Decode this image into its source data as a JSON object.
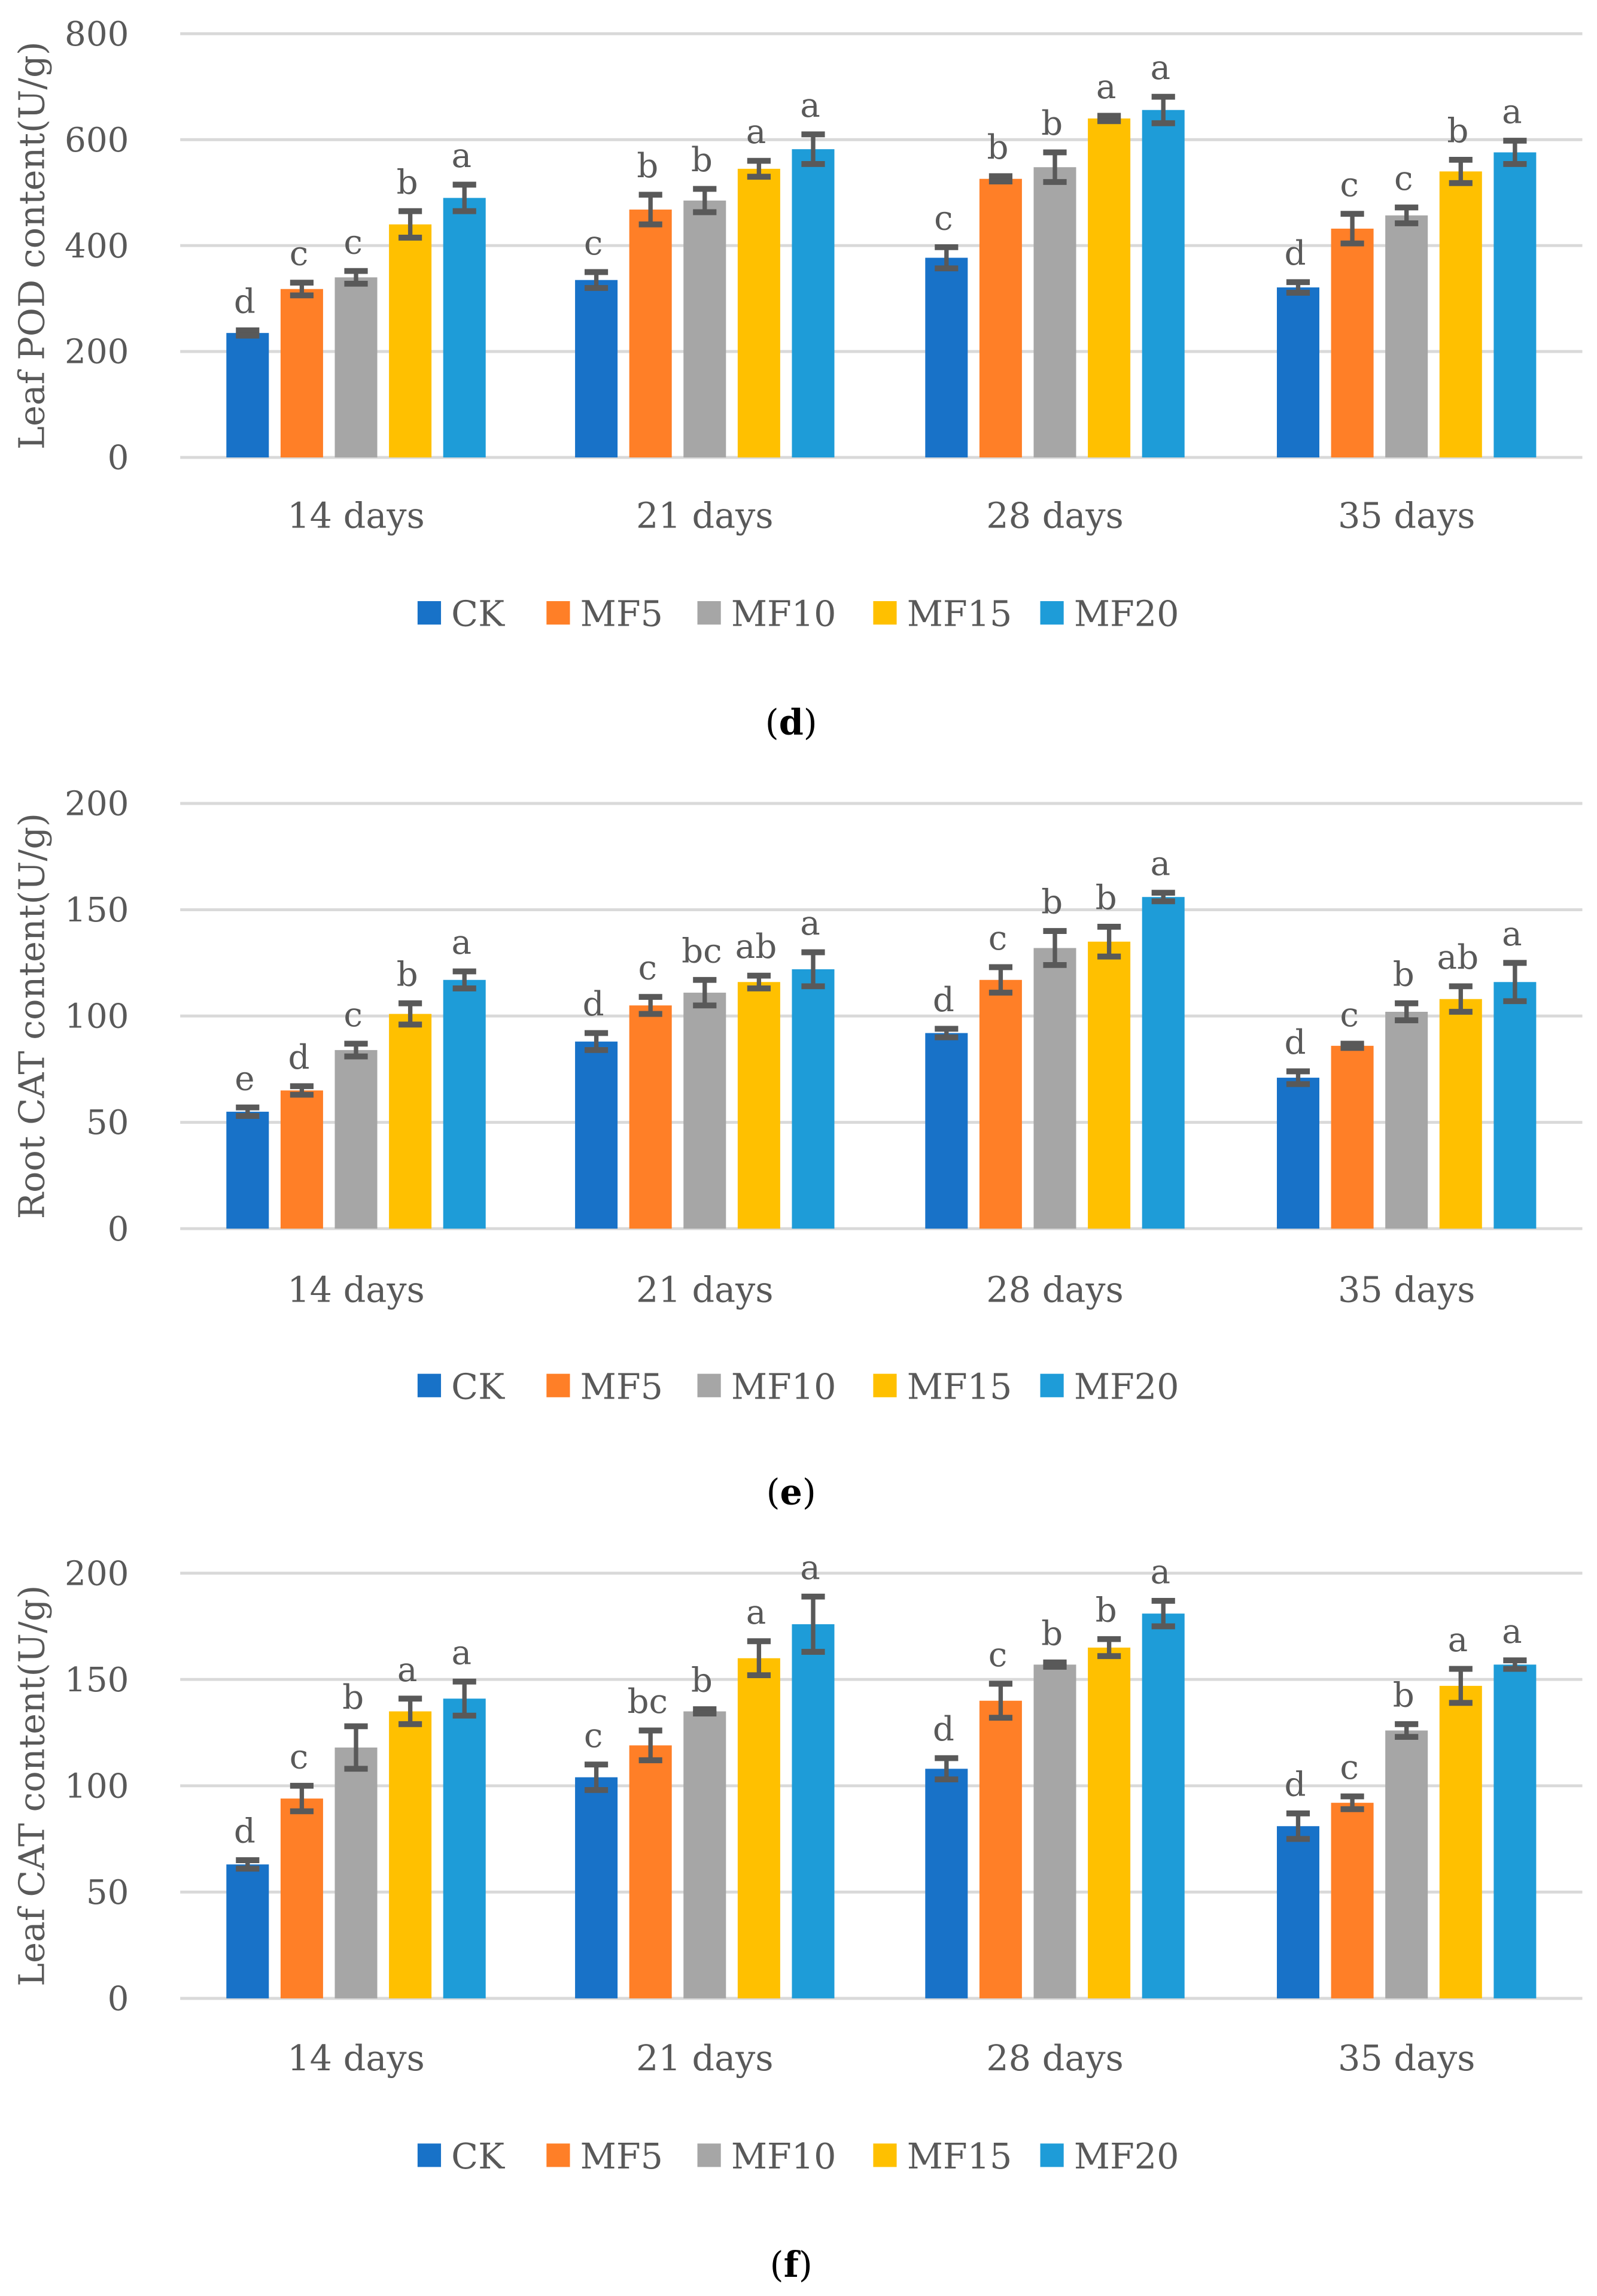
{
  "colors": {
    "CK": "#1872C8",
    "MF5": "#FF7F27",
    "MF10": "#A6A6A6",
    "MF15": "#FFC000",
    "MF20": "#1E9CD8",
    "error": "#595959",
    "grid": "#D9D9D9"
  },
  "chart_data": [
    {
      "type": "bar",
      "panel": "d",
      "ylabel": "Leaf POD content(U/g)",
      "ylim": [
        0,
        800
      ],
      "yticks": [
        0,
        200,
        400,
        600,
        800
      ],
      "grid": true,
      "legend": "bottom",
      "categories": [
        "14 days",
        "21 days",
        "28 days",
        "35 days"
      ],
      "series": [
        {
          "name": "CK",
          "values": [
            235,
            335,
            377,
            321
          ],
          "errors": [
            5,
            15,
            20,
            10
          ],
          "letters": [
            "d",
            "c",
            "c",
            "d"
          ]
        },
        {
          "name": "MF5",
          "values": [
            318,
            468,
            526,
            432
          ],
          "errors": [
            12,
            28,
            5,
            28
          ],
          "letters": [
            "c",
            "b",
            "b",
            "c"
          ]
        },
        {
          "name": "MF10",
          "values": [
            340,
            485,
            548,
            457
          ],
          "errors": [
            12,
            22,
            28,
            15
          ],
          "letters": [
            "c",
            "b",
            "b",
            "c"
          ]
        },
        {
          "name": "MF15",
          "values": [
            440,
            545,
            640,
            540
          ],
          "errors": [
            25,
            15,
            5,
            22
          ],
          "letters": [
            "b",
            "a",
            "a",
            "b"
          ]
        },
        {
          "name": "MF20",
          "values": [
            490,
            582,
            656,
            576
          ],
          "errors": [
            25,
            28,
            25,
            22
          ],
          "letters": [
            "a",
            "a",
            "a",
            "a"
          ]
        }
      ]
    },
    {
      "type": "bar",
      "panel": "e",
      "ylabel": "Root CAT content(U/g)",
      "ylim": [
        0,
        200
      ],
      "yticks": [
        0,
        50,
        100,
        150,
        200
      ],
      "grid": true,
      "legend": "bottom",
      "categories": [
        "14 days",
        "21 days",
        "28 days",
        "35 days"
      ],
      "series": [
        {
          "name": "CK",
          "values": [
            55,
            88,
            92,
            71
          ],
          "errors": [
            2,
            4,
            2,
            3
          ],
          "letters": [
            "e",
            "d",
            "d",
            "d"
          ]
        },
        {
          "name": "MF5",
          "values": [
            65,
            105,
            117,
            86
          ],
          "errors": [
            2,
            4,
            6,
            1
          ],
          "letters": [
            "d",
            "c",
            "c",
            "c"
          ]
        },
        {
          "name": "MF10",
          "values": [
            84,
            111,
            132,
            102
          ],
          "errors": [
            3,
            6,
            8,
            4
          ],
          "letters": [
            "c",
            "bc",
            "b",
            "b"
          ]
        },
        {
          "name": "MF15",
          "values": [
            101,
            116,
            135,
            108
          ],
          "errors": [
            5,
            3,
            7,
            6
          ],
          "letters": [
            "b",
            "ab",
            "b",
            "ab"
          ]
        },
        {
          "name": "MF20",
          "values": [
            117,
            122,
            156,
            116
          ],
          "errors": [
            4,
            8,
            2,
            9
          ],
          "letters": [
            "a",
            "a",
            "a",
            "a"
          ]
        }
      ]
    },
    {
      "type": "bar",
      "panel": "f",
      "ylabel": "Leaf CAT content(U/g)",
      "ylim": [
        0,
        200
      ],
      "yticks": [
        0,
        50,
        100,
        150,
        200
      ],
      "grid": true,
      "legend": "bottom",
      "categories": [
        "14 days",
        "21 days",
        "28 days",
        "35 days"
      ],
      "series": [
        {
          "name": "CK",
          "values": [
            63,
            104,
            108,
            81
          ],
          "errors": [
            2,
            6,
            5,
            6
          ],
          "letters": [
            "d",
            "c",
            "d",
            "d"
          ]
        },
        {
          "name": "MF5",
          "values": [
            94,
            119,
            140,
            92
          ],
          "errors": [
            6,
            7,
            8,
            3
          ],
          "letters": [
            "c",
            "bc",
            "c",
            "c"
          ]
        },
        {
          "name": "MF10",
          "values": [
            118,
            135,
            157,
            126
          ],
          "errors": [
            10,
            1,
            1,
            3
          ],
          "letters": [
            "b",
            "b",
            "b",
            "b"
          ]
        },
        {
          "name": "MF15",
          "values": [
            135,
            160,
            165,
            147
          ],
          "errors": [
            6,
            8,
            4,
            8
          ],
          "letters": [
            "a",
            "a",
            "b",
            "a"
          ]
        },
        {
          "name": "MF20",
          "values": [
            141,
            176,
            181,
            157
          ],
          "errors": [
            8,
            13,
            6,
            2
          ],
          "letters": [
            "a",
            "a",
            "a",
            "a"
          ]
        }
      ]
    }
  ]
}
